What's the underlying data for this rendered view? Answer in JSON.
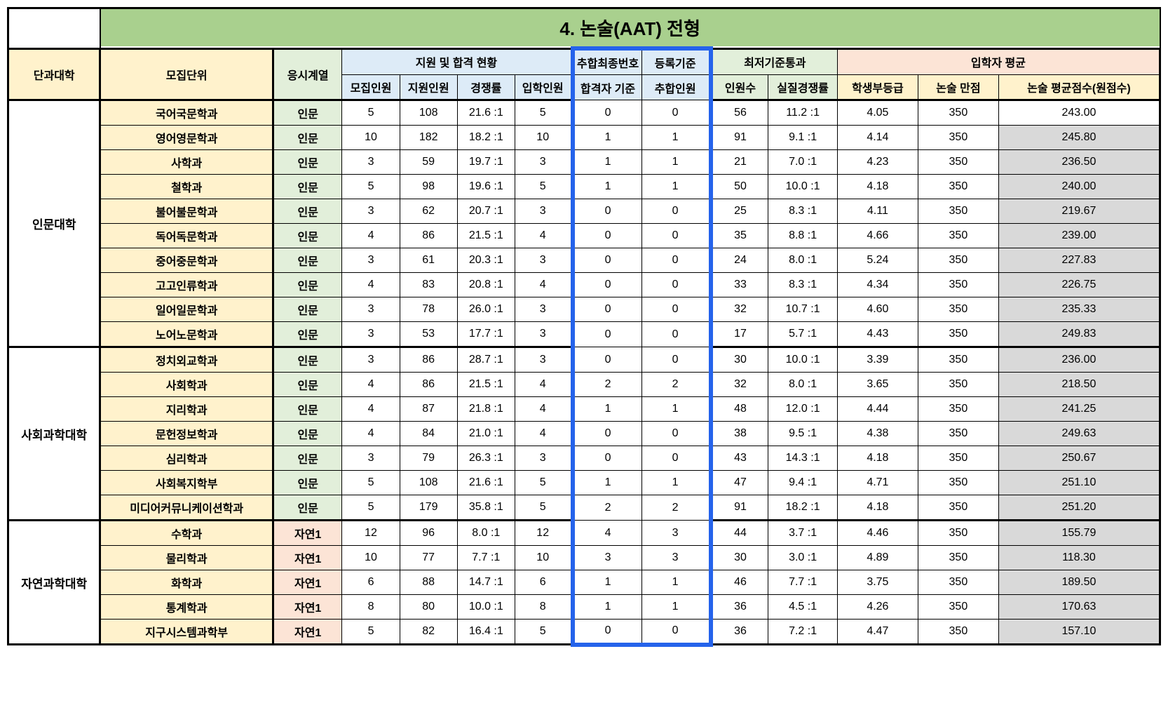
{
  "title": "4. 논술(AAT) 전형",
  "headers": {
    "college": "단과대학",
    "dept": "모집단위",
    "track": "응시계열",
    "group1": "지원 및 합격 현황",
    "group1_sub": [
      "모집인원",
      "지원인원",
      "경쟁률",
      "입학인원"
    ],
    "group2a": "추합최종번호",
    "group2b": "등록기준",
    "group2_sub": [
      "합격자 기준",
      "추합인원"
    ],
    "group3": "최저기준통과",
    "group3_sub": [
      "인원수",
      "실질경쟁률"
    ],
    "group4": "입학자 평균",
    "group4_sub": [
      "학생부등급",
      "논술 만점",
      "논술 평균점수(원점수)"
    ]
  },
  "colleges": [
    {
      "name": "인문대학",
      "rows": [
        {
          "dept": "국어국문학과",
          "track": "인문",
          "trackClass": "track-hum",
          "v": [
            "5",
            "108",
            "21.6 :1",
            "5",
            "0",
            "0",
            "56",
            "11.2 :1",
            "4.05",
            "350",
            "243.00"
          ],
          "lastGray": false
        },
        {
          "dept": "영어영문학과",
          "track": "인문",
          "trackClass": "track-hum",
          "v": [
            "10",
            "182",
            "18.2 :1",
            "10",
            "1",
            "1",
            "91",
            "9.1 :1",
            "4.14",
            "350",
            "245.80"
          ],
          "lastGray": true
        },
        {
          "dept": "사학과",
          "track": "인문",
          "trackClass": "track-hum",
          "v": [
            "3",
            "59",
            "19.7 :1",
            "3",
            "1",
            "1",
            "21",
            "7.0 :1",
            "4.23",
            "350",
            "236.50"
          ],
          "lastGray": true
        },
        {
          "dept": "철학과",
          "track": "인문",
          "trackClass": "track-hum",
          "v": [
            "5",
            "98",
            "19.6 :1",
            "5",
            "1",
            "1",
            "50",
            "10.0 :1",
            "4.18",
            "350",
            "240.00"
          ],
          "lastGray": true
        },
        {
          "dept": "불어불문학과",
          "track": "인문",
          "trackClass": "track-hum",
          "v": [
            "3",
            "62",
            "20.7 :1",
            "3",
            "0",
            "0",
            "25",
            "8.3 :1",
            "4.11",
            "350",
            "219.67"
          ],
          "lastGray": true
        },
        {
          "dept": "독어독문학과",
          "track": "인문",
          "trackClass": "track-hum",
          "v": [
            "4",
            "86",
            "21.5 :1",
            "4",
            "0",
            "0",
            "35",
            "8.8 :1",
            "4.66",
            "350",
            "239.00"
          ],
          "lastGray": true
        },
        {
          "dept": "중어중문학과",
          "track": "인문",
          "trackClass": "track-hum",
          "v": [
            "3",
            "61",
            "20.3 :1",
            "3",
            "0",
            "0",
            "24",
            "8.0 :1",
            "5.24",
            "350",
            "227.83"
          ],
          "lastGray": true
        },
        {
          "dept": "고고인류학과",
          "track": "인문",
          "trackClass": "track-hum",
          "v": [
            "4",
            "83",
            "20.8 :1",
            "4",
            "0",
            "0",
            "33",
            "8.3 :1",
            "4.34",
            "350",
            "226.75"
          ],
          "lastGray": true
        },
        {
          "dept": "일어일문학과",
          "track": "인문",
          "trackClass": "track-hum",
          "v": [
            "3",
            "78",
            "26.0 :1",
            "3",
            "0",
            "0",
            "32",
            "10.7 :1",
            "4.60",
            "350",
            "235.33"
          ],
          "lastGray": true
        },
        {
          "dept": "노어노문학과",
          "track": "인문",
          "trackClass": "track-hum",
          "v": [
            "3",
            "53",
            "17.7 :1",
            "3",
            "0",
            "0",
            "17",
            "5.7 :1",
            "4.43",
            "350",
            "249.83"
          ],
          "lastGray": true
        }
      ]
    },
    {
      "name": "사회과학대학",
      "rows": [
        {
          "dept": "정치외교학과",
          "track": "인문",
          "trackClass": "track-hum",
          "v": [
            "3",
            "86",
            "28.7 :1",
            "3",
            "0",
            "0",
            "30",
            "10.0 :1",
            "3.39",
            "350",
            "236.00"
          ],
          "lastGray": true
        },
        {
          "dept": "사회학과",
          "track": "인문",
          "trackClass": "track-hum",
          "v": [
            "4",
            "86",
            "21.5 :1",
            "4",
            "2",
            "2",
            "32",
            "8.0 :1",
            "3.65",
            "350",
            "218.50"
          ],
          "lastGray": true
        },
        {
          "dept": "지리학과",
          "track": "인문",
          "trackClass": "track-hum",
          "v": [
            "4",
            "87",
            "21.8 :1",
            "4",
            "1",
            "1",
            "48",
            "12.0 :1",
            "4.44",
            "350",
            "241.25"
          ],
          "lastGray": true
        },
        {
          "dept": "문헌정보학과",
          "track": "인문",
          "trackClass": "track-hum",
          "v": [
            "4",
            "84",
            "21.0 :1",
            "4",
            "0",
            "0",
            "38",
            "9.5 :1",
            "4.38",
            "350",
            "249.63"
          ],
          "lastGray": true
        },
        {
          "dept": "심리학과",
          "track": "인문",
          "trackClass": "track-hum",
          "v": [
            "3",
            "79",
            "26.3 :1",
            "3",
            "0",
            "0",
            "43",
            "14.3 :1",
            "4.18",
            "350",
            "250.67"
          ],
          "lastGray": true
        },
        {
          "dept": "사회복지학부",
          "track": "인문",
          "trackClass": "track-hum",
          "v": [
            "5",
            "108",
            "21.6 :1",
            "5",
            "1",
            "1",
            "47",
            "9.4 :1",
            "4.71",
            "350",
            "251.10"
          ],
          "lastGray": true
        },
        {
          "dept": "미디어커뮤니케이션학과",
          "track": "인문",
          "trackClass": "track-hum",
          "v": [
            "5",
            "179",
            "35.8 :1",
            "5",
            "2",
            "2",
            "91",
            "18.2 :1",
            "4.18",
            "350",
            "251.20"
          ],
          "lastGray": true
        }
      ]
    },
    {
      "name": "자연과학대학",
      "rows": [
        {
          "dept": "수학과",
          "track": "자연1",
          "trackClass": "track-nat",
          "v": [
            "12",
            "96",
            "8.0 :1",
            "12",
            "4",
            "3",
            "44",
            "3.7 :1",
            "4.46",
            "350",
            "155.79"
          ],
          "lastGray": true
        },
        {
          "dept": "물리학과",
          "track": "자연1",
          "trackClass": "track-nat",
          "v": [
            "10",
            "77",
            "7.7 :1",
            "10",
            "3",
            "3",
            "30",
            "3.0 :1",
            "4.89",
            "350",
            "118.30"
          ],
          "lastGray": true
        },
        {
          "dept": "화학과",
          "track": "자연1",
          "trackClass": "track-nat",
          "v": [
            "6",
            "88",
            "14.7 :1",
            "6",
            "1",
            "1",
            "46",
            "7.7 :1",
            "3.75",
            "350",
            "189.50"
          ],
          "lastGray": true
        },
        {
          "dept": "통계학과",
          "track": "자연1",
          "trackClass": "track-nat",
          "v": [
            "8",
            "80",
            "10.0 :1",
            "8",
            "1",
            "1",
            "36",
            "4.5 :1",
            "4.26",
            "350",
            "170.63"
          ],
          "lastGray": true
        },
        {
          "dept": "지구시스템과학부",
          "track": "자연1",
          "trackClass": "track-nat",
          "v": [
            "5",
            "82",
            "16.4 :1",
            "5",
            "0",
            "0",
            "36",
            "7.2 :1",
            "4.47",
            "350",
            "157.10"
          ],
          "lastGray": true
        }
      ]
    }
  ],
  "styling": {
    "colors": {
      "title_bg": "#a9d08e",
      "yellow_bg": "#fff2cc",
      "blue_bg": "#ddebf7",
      "green_bg": "#e2efda",
      "pink_bg": "#fce4d6",
      "gray_bg": "#d9d9d9",
      "highlight_border": "#2563eb"
    },
    "col_widths_pct": [
      8,
      15,
      6,
      5,
      5,
      5,
      5,
      6,
      6,
      5,
      6,
      7,
      7,
      14
    ],
    "font_sizes": {
      "title": 26,
      "header": 16,
      "body": 16
    }
  }
}
